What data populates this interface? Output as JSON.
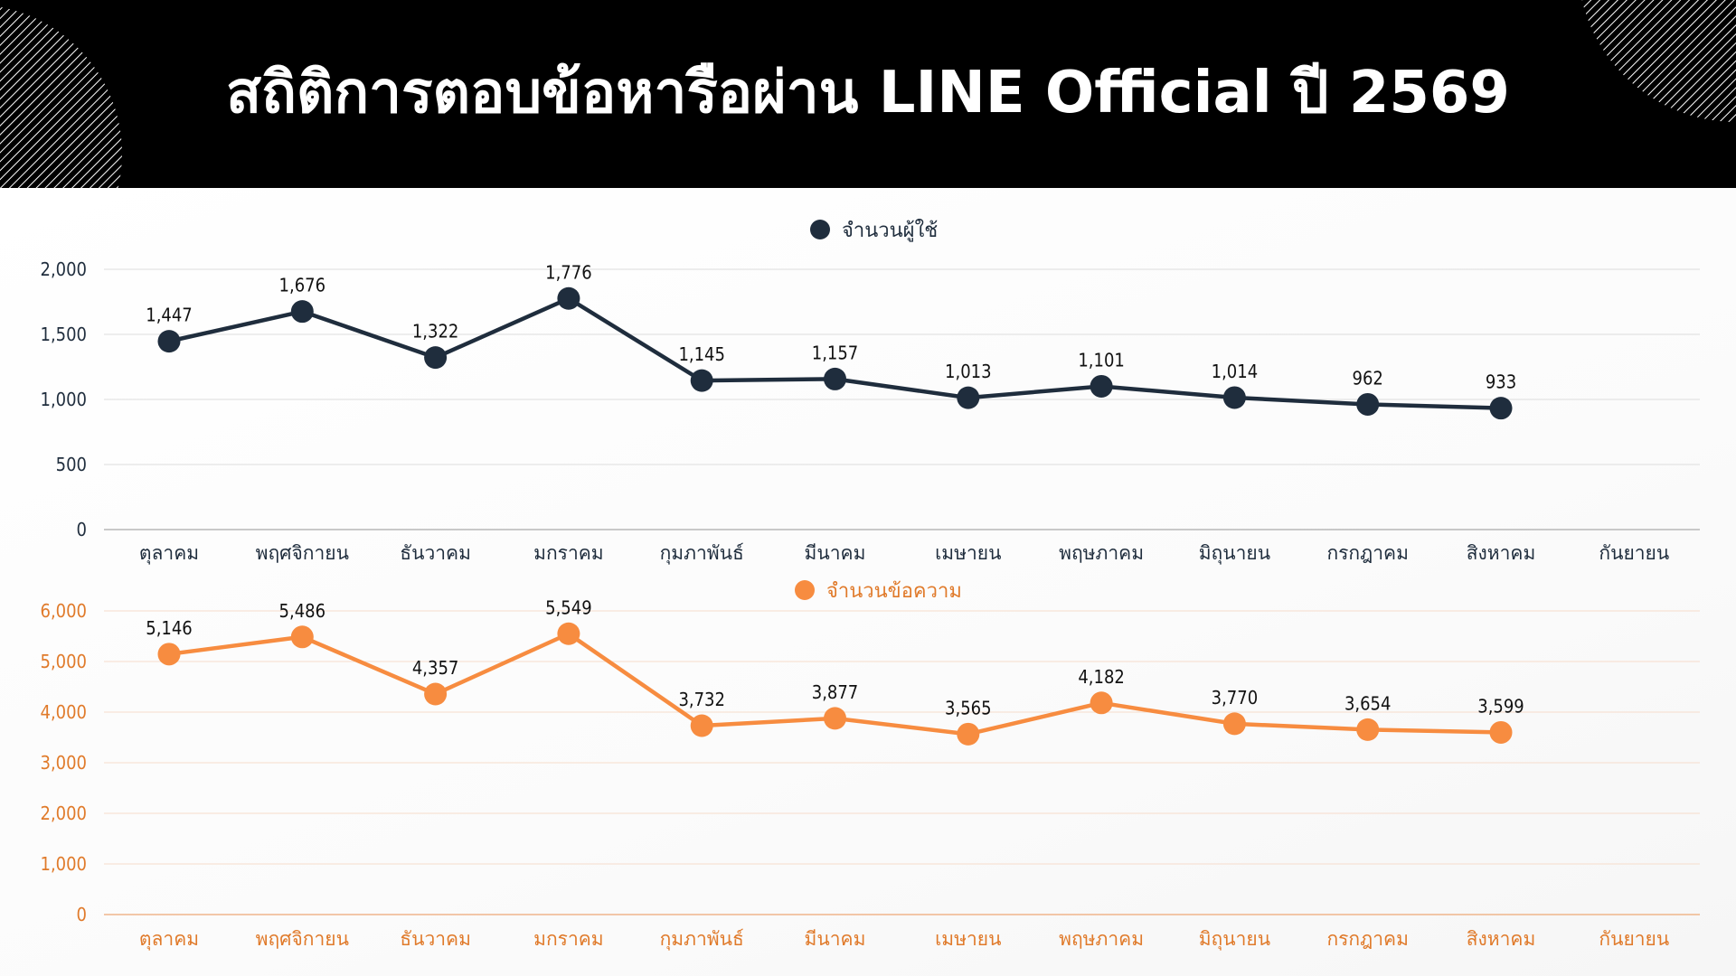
{
  "title": "สถิติการตอบข้อหารือผ่าน LINE Official ปี 2569",
  "colors": {
    "header_bg": "#000000",
    "users": "#1f2d3d",
    "messages": "#f78c40",
    "axis_orange": "#e07a2a"
  },
  "chart_data": [
    {
      "type": "line",
      "series": [
        {
          "name": "จำนวนผู้ใช้",
          "color": "#1f2d3d",
          "values": [
            1447,
            1676,
            1322,
            1776,
            1145,
            1157,
            1013,
            1101,
            1014,
            962,
            933,
            null
          ],
          "labels": [
            "1,447",
            "1,676",
            "1,322",
            "1,776",
            "1,145",
            "1,157",
            "1,013",
            "1,101",
            "1,014",
            "962",
            "933",
            ""
          ]
        }
      ],
      "categories": [
        "ตุลาคม",
        "พฤศจิกายน",
        "ธันวาคม",
        "มกราคม",
        "กุมภาพันธ์",
        "มีนาคม",
        "เมษายน",
        "พฤษภาคม",
        "มิถุนายน",
        "กรกฎาคม",
        "สิงหาคม",
        "กันยายน"
      ],
      "ylim": [
        0,
        2000
      ],
      "yticks": [
        0,
        500,
        1000,
        1500,
        2000
      ],
      "ytick_labels": [
        "0",
        "500",
        "1,000",
        "1,500",
        "2,000"
      ],
      "legend": "top-center",
      "grid": true
    },
    {
      "type": "line",
      "series": [
        {
          "name": "จำนวนข้อความ",
          "color": "#f78c40",
          "values": [
            5146,
            5486,
            4357,
            5549,
            3732,
            3877,
            3565,
            4182,
            3770,
            3654,
            3599,
            null
          ],
          "labels": [
            "5,146",
            "5,486",
            "4,357",
            "5,549",
            "3,732",
            "3,877",
            "3,565",
            "4,182",
            "3,770",
            "3,654",
            "3,599",
            ""
          ]
        }
      ],
      "categories": [
        "ตุลาคม",
        "พฤศจิกายน",
        "ธันวาคม",
        "มกราคม",
        "กุมภาพันธ์",
        "มีนาคม",
        "เมษายน",
        "พฤษภาคม",
        "มิถุนายน",
        "กรกฎาคม",
        "สิงหาคม",
        "กันยายน"
      ],
      "ylim": [
        0,
        6000
      ],
      "yticks": [
        0,
        1000,
        2000,
        3000,
        4000,
        5000,
        6000
      ],
      "ytick_labels": [
        "0",
        "1,000",
        "2,000",
        "3,000",
        "4,000",
        "5,000",
        "6,000"
      ],
      "legend": "top-center",
      "grid": true
    }
  ]
}
